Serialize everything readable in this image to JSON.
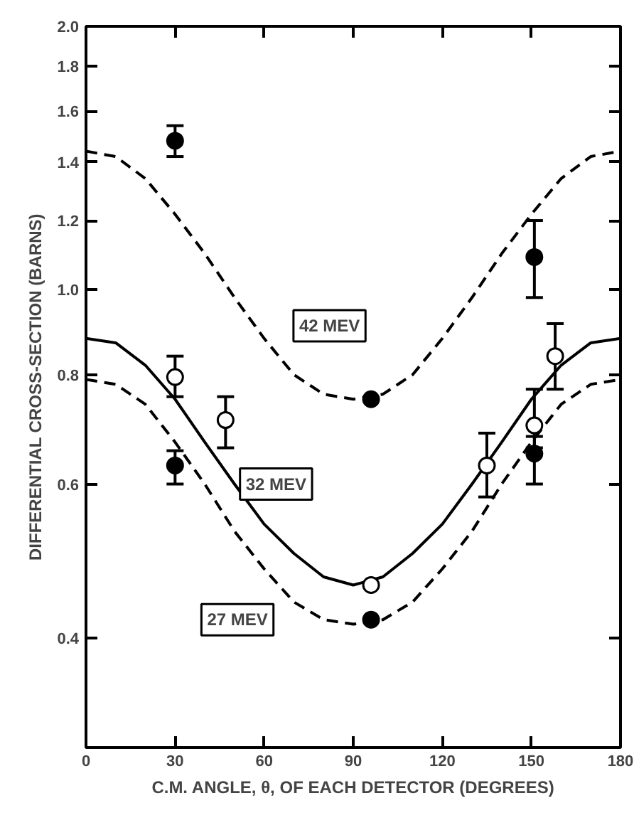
{
  "chart_data": {
    "type": "scatter",
    "xlabel": "C.M. ANGLE, θ, OF EACH DETECTOR (DEGREES)",
    "ylabel": "DIFFERENTIAL CROSS-SECTION (BARNS)",
    "xlim": [
      0,
      180
    ],
    "xticks": [
      0,
      30,
      60,
      90,
      120,
      150,
      180
    ],
    "ylim": [
      0.3,
      2.0
    ],
    "yticks": [
      0.4,
      0.6,
      0.8,
      {
        "value": 1.0,
        "label": "1.0"
      },
      1.2,
      1.4,
      1.6,
      1.8,
      {
        "value": 2.0,
        "label": "2.0"
      }
    ],
    "log": "y",
    "grid": false,
    "legend": false,
    "marker": "circle",
    "series": [
      {
        "type": "line",
        "name": "42 MEV",
        "marker": "none",
        "line_style": "dashed",
        "color": "#000000",
        "x": [
          0,
          10,
          20,
          30,
          40,
          50,
          60,
          70,
          80,
          90,
          100,
          110,
          120,
          130,
          140,
          150,
          160,
          170,
          180
        ],
        "values": [
          1.44,
          1.42,
          1.34,
          1.22,
          1.1,
          0.98,
          0.88,
          0.8,
          0.76,
          0.75,
          0.76,
          0.8,
          0.88,
          0.98,
          1.1,
          1.22,
          1.34,
          1.42,
          1.44
        ]
      },
      {
        "type": "line",
        "name": "32 MEV",
        "marker": "none",
        "line_style": "solid",
        "color": "#000000",
        "x": [
          0,
          10,
          20,
          30,
          40,
          50,
          60,
          70,
          80,
          90,
          100,
          110,
          120,
          130,
          140,
          150,
          160,
          170,
          180
        ],
        "values": [
          0.88,
          0.87,
          0.82,
          0.75,
          0.67,
          0.6,
          0.54,
          0.5,
          0.47,
          0.46,
          0.47,
          0.5,
          0.54,
          0.6,
          0.67,
          0.75,
          0.82,
          0.87,
          0.88
        ]
      },
      {
        "type": "line",
        "name": "27 MEV",
        "marker": "none",
        "line_style": "dashed",
        "color": "#000000",
        "x": [
          0,
          10,
          20,
          30,
          40,
          50,
          60,
          70,
          80,
          90,
          100,
          110,
          120,
          130,
          140,
          150,
          160,
          170,
          180
        ],
        "values": [
          0.79,
          0.78,
          0.74,
          0.67,
          0.6,
          0.53,
          0.48,
          0.44,
          0.42,
          0.415,
          0.42,
          0.44,
          0.48,
          0.53,
          0.6,
          0.67,
          0.74,
          0.78,
          0.79
        ]
      },
      {
        "color": "#000000",
        "x": [
          30,
          96,
          151
        ],
        "values": [
          1.48,
          0.75,
          1.09
        ],
        "errors": [
          [
            1.42,
            1.54
          ],
          null,
          [
            0.98,
            1.2
          ]
        ]
      },
      {
        "color": "#ffffff",
        "x": [
          30,
          47,
          96,
          135,
          151,
          158
        ],
        "values": [
          0.795,
          0.71,
          0.46,
          0.63,
          0.7,
          0.84
        ],
        "errors": [
          [
            0.755,
            0.84
          ],
          [
            0.66,
            0.755
          ],
          null,
          [
            0.58,
            0.686
          ],
          [
            0.66,
            0.77
          ],
          [
            0.77,
            0.915
          ]
        ]
      },
      {
        "color": "#000000",
        "x": [
          30,
          96,
          151
        ],
        "values": [
          0.63,
          0.42,
          0.65
        ],
        "errors": [
          [
            0.6,
            0.655
          ],
          null,
          [
            0.6,
            0.68
          ]
        ]
      }
    ]
  }
}
